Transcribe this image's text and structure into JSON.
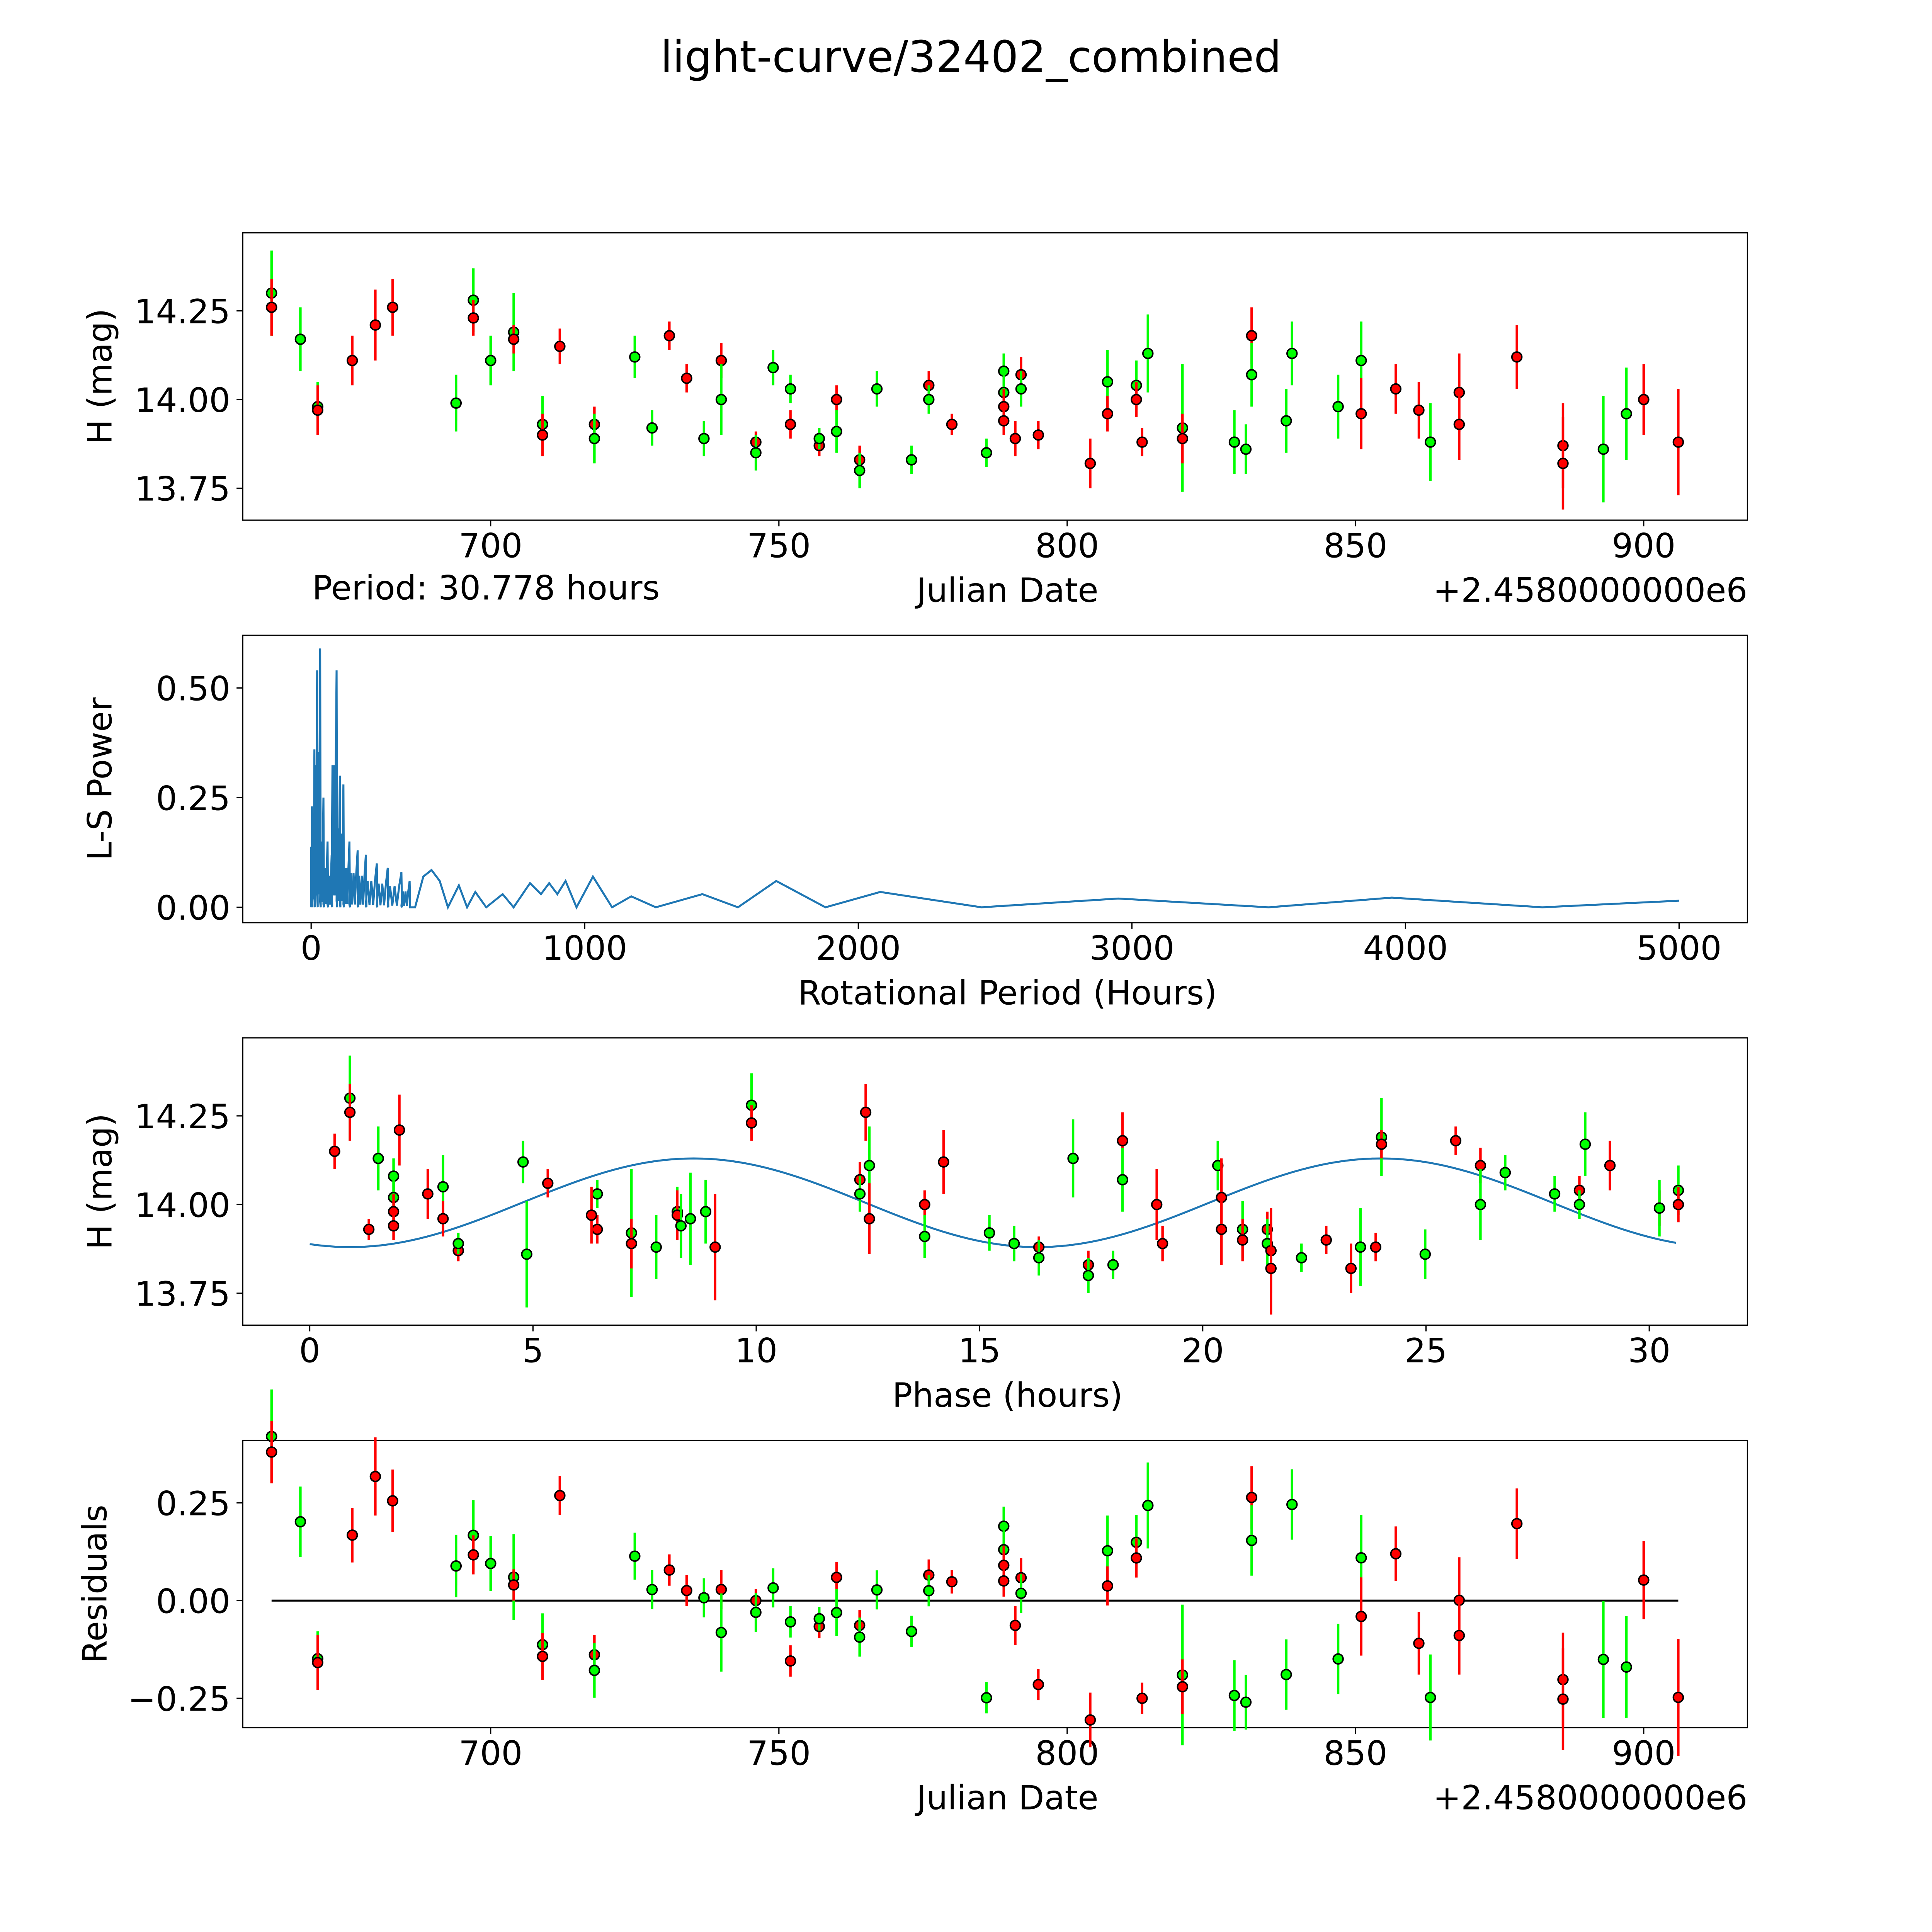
{
  "title": "light-curve/32402_combined",
  "colors": {
    "green": "#00ff00",
    "red": "#ff0000",
    "line": "#1f77b4",
    "axis": "#000000"
  },
  "chart_data": [
    {
      "type": "scatter",
      "name": "light-curve",
      "xlabel": "Julian Date",
      "ylabel": "H (mag)",
      "offset_text": "+2.4580000000e6",
      "annotation": "Period: 30.778 hours",
      "xlim": [
        657,
        918
      ],
      "ylim": [
        13.66,
        14.47
      ],
      "xticks": [
        "700",
        "750",
        "800",
        "850",
        "900"
      ],
      "yticks": [
        "13.75",
        "14.00",
        "14.25"
      ],
      "points": [
        [
          662,
          14.3,
          0.12,
          "g"
        ],
        [
          662,
          14.26,
          0.08,
          "r"
        ],
        [
          667,
          14.17,
          0.09,
          "g"
        ],
        [
          670,
          13.98,
          0.07,
          "g"
        ],
        [
          670,
          13.97,
          0.07,
          "r"
        ],
        [
          676,
          14.11,
          0.07,
          "r"
        ],
        [
          680,
          14.21,
          0.1,
          "r"
        ],
        [
          683,
          14.26,
          0.08,
          "r"
        ],
        [
          694,
          13.99,
          0.05,
          "r"
        ],
        [
          694,
          13.99,
          0.08,
          "g"
        ],
        [
          697,
          14.28,
          0.09,
          "g"
        ],
        [
          697,
          14.23,
          0.05,
          "r"
        ],
        [
          700,
          14.11,
          0.07,
          "g"
        ],
        [
          704,
          14.19,
          0.11,
          "g"
        ],
        [
          704,
          14.17,
          0.04,
          "r"
        ],
        [
          709,
          13.93,
          0.08,
          "g"
        ],
        [
          709,
          13.9,
          0.06,
          "r"
        ],
        [
          712,
          14.15,
          0.05,
          "r"
        ],
        [
          718,
          13.93,
          0.05,
          "r"
        ],
        [
          718,
          13.89,
          0.07,
          "g"
        ],
        [
          725,
          14.12,
          0.06,
          "g"
        ],
        [
          728,
          13.92,
          0.05,
          "g"
        ],
        [
          731,
          14.18,
          0.04,
          "r"
        ],
        [
          734,
          14.06,
          0.04,
          "r"
        ],
        [
          737,
          13.89,
          0.05,
          "g"
        ],
        [
          740,
          14.11,
          0.05,
          "r"
        ],
        [
          740,
          14.0,
          0.1,
          "g"
        ],
        [
          746,
          13.88,
          0.03,
          "r"
        ],
        [
          746,
          13.85,
          0.05,
          "g"
        ],
        [
          749,
          14.09,
          0.05,
          "g"
        ],
        [
          752,
          14.03,
          0.04,
          "g"
        ],
        [
          752,
          13.93,
          0.04,
          "r"
        ],
        [
          757,
          13.87,
          0.03,
          "r"
        ],
        [
          757,
          13.89,
          0.03,
          "g"
        ],
        [
          760,
          14.0,
          0.04,
          "r"
        ],
        [
          760,
          13.91,
          0.06,
          "g"
        ],
        [
          764,
          13.83,
          0.04,
          "r"
        ],
        [
          764,
          13.8,
          0.05,
          "g"
        ],
        [
          767,
          14.03,
          0.05,
          "g"
        ],
        [
          773,
          13.83,
          0.03,
          "r"
        ],
        [
          773,
          13.83,
          0.04,
          "g"
        ],
        [
          776,
          14.04,
          0.04,
          "r"
        ],
        [
          776,
          14.0,
          0.04,
          "g"
        ],
        [
          780,
          13.93,
          0.03,
          "r"
        ],
        [
          786,
          13.85,
          0.04,
          "g"
        ],
        [
          789,
          14.08,
          0.05,
          "g"
        ],
        [
          789,
          14.02,
          0.05,
          "g"
        ],
        [
          789,
          13.98,
          0.05,
          "r"
        ],
        [
          789,
          13.94,
          0.04,
          "r"
        ],
        [
          791,
          13.89,
          0.05,
          "r"
        ],
        [
          792,
          14.07,
          0.05,
          "r"
        ],
        [
          792,
          14.03,
          0.05,
          "g"
        ],
        [
          795,
          13.9,
          0.04,
          "r"
        ],
        [
          804,
          13.82,
          0.07,
          "r"
        ],
        [
          807,
          14.05,
          0.09,
          "g"
        ],
        [
          807,
          13.96,
          0.05,
          "r"
        ],
        [
          812,
          14.04,
          0.07,
          "g"
        ],
        [
          812,
          14.0,
          0.05,
          "r"
        ],
        [
          813,
          13.88,
          0.04,
          "r"
        ],
        [
          814,
          14.13,
          0.11,
          "g"
        ],
        [
          820,
          13.92,
          0.18,
          "g"
        ],
        [
          820,
          13.89,
          0.07,
          "r"
        ],
        [
          829,
          13.88,
          0.09,
          "g"
        ],
        [
          831,
          13.86,
          0.07,
          "g"
        ],
        [
          832,
          14.18,
          0.08,
          "r"
        ],
        [
          832,
          14.07,
          0.09,
          "g"
        ],
        [
          838,
          13.94,
          0.09,
          "g"
        ],
        [
          839,
          14.13,
          0.09,
          "g"
        ],
        [
          847,
          13.98,
          0.09,
          "g"
        ],
        [
          851,
          14.11,
          0.11,
          "g"
        ],
        [
          851,
          13.96,
          0.1,
          "r"
        ],
        [
          857,
          14.03,
          0.07,
          "r"
        ],
        [
          861,
          13.97,
          0.08,
          "r"
        ],
        [
          863,
          13.88,
          0.11,
          "g"
        ],
        [
          868,
          14.02,
          0.11,
          "r"
        ],
        [
          868,
          13.93,
          0.1,
          "r"
        ],
        [
          878,
          14.12,
          0.09,
          "r"
        ],
        [
          886,
          13.87,
          0.12,
          "r"
        ],
        [
          886,
          13.82,
          0.13,
          "r"
        ],
        [
          893,
          13.86,
          0.15,
          "g"
        ],
        [
          897,
          13.96,
          0.13,
          "g"
        ],
        [
          900,
          14.0,
          0.1,
          "r"
        ],
        [
          906,
          13.88,
          0.15,
          "r"
        ]
      ]
    },
    {
      "type": "line",
      "name": "periodogram",
      "xlabel": "Rotational Period (Hours)",
      "ylabel": "L-S Power",
      "xlim": [
        -250,
        5250
      ],
      "ylim": [
        -0.035,
        0.62
      ],
      "xticks": [
        "0",
        "1000",
        "2000",
        "3000",
        "4000",
        "5000"
      ],
      "yticks": [
        "0.00",
        "0.25",
        "0.50"
      ],
      "peaks": [
        [
          3,
          0.23
        ],
        [
          12,
          0.36
        ],
        [
          22,
          0.54
        ],
        [
          33,
          0.59
        ],
        [
          45,
          0.25
        ],
        [
          60,
          0.15
        ],
        [
          75,
          0.12
        ],
        [
          93,
          0.54
        ],
        [
          105,
          0.3
        ],
        [
          118,
          0.28
        ],
        [
          140,
          0.15
        ],
        [
          170,
          0.13
        ],
        [
          200,
          0.12
        ],
        [
          240,
          0.1
        ],
        [
          280,
          0.09
        ],
        [
          330,
          0.08
        ],
        [
          360,
          0.06
        ]
      ],
      "curve": [
        [
          380,
          0
        ],
        [
          410,
          0.07
        ],
        [
          440,
          0.085
        ],
        [
          470,
          0.06
        ],
        [
          500,
          0
        ],
        [
          540,
          0.05
        ],
        [
          570,
          0
        ],
        [
          600,
          0.035
        ],
        [
          640,
          0
        ],
        [
          700,
          0.03
        ],
        [
          740,
          0
        ],
        [
          800,
          0.055
        ],
        [
          840,
          0.03
        ],
        [
          870,
          0.055
        ],
        [
          900,
          0.03
        ],
        [
          930,
          0.06
        ],
        [
          970,
          0
        ],
        [
          1030,
          0.07
        ],
        [
          1100,
          0
        ],
        [
          1170,
          0.025
        ],
        [
          1260,
          0
        ],
        [
          1430,
          0.03
        ],
        [
          1560,
          0
        ],
        [
          1700,
          0.06
        ],
        [
          1880,
          0
        ],
        [
          2080,
          0.035
        ],
        [
          2450,
          0
        ],
        [
          2950,
          0.02
        ],
        [
          3500,
          0
        ],
        [
          3950,
          0.022
        ],
        [
          4500,
          0
        ],
        [
          5000,
          0.015
        ]
      ]
    },
    {
      "type": "scatter",
      "name": "phased",
      "xlabel": "Phase (hours)",
      "ylabel": "H (mag)",
      "period_hours": 30.778,
      "epoch": 661.9625,
      "model": {
        "mean": 14.005,
        "amplitude": 0.125,
        "peak_phase": 8.6
      },
      "xlim": [
        -1.5,
        32.2
      ],
      "ylim": [
        13.66,
        14.47
      ],
      "xticks": [
        "0",
        "5",
        "10",
        "15",
        "20",
        "25",
        "30"
      ],
      "yticks": [
        "13.75",
        "14.00",
        "14.25"
      ]
    },
    {
      "type": "scatter",
      "name": "residuals",
      "xlabel": "Julian Date",
      "ylabel": "Residuals",
      "offset_text": "+2.4580000000e6",
      "xlim": [
        657,
        918
      ],
      "ylim": [
        -0.325,
        0.41
      ],
      "xticks": [
        "700",
        "750",
        "800",
        "850",
        "900"
      ],
      "yticks": [
        "−0.25",
        "0.00",
        "0.25"
      ]
    }
  ]
}
